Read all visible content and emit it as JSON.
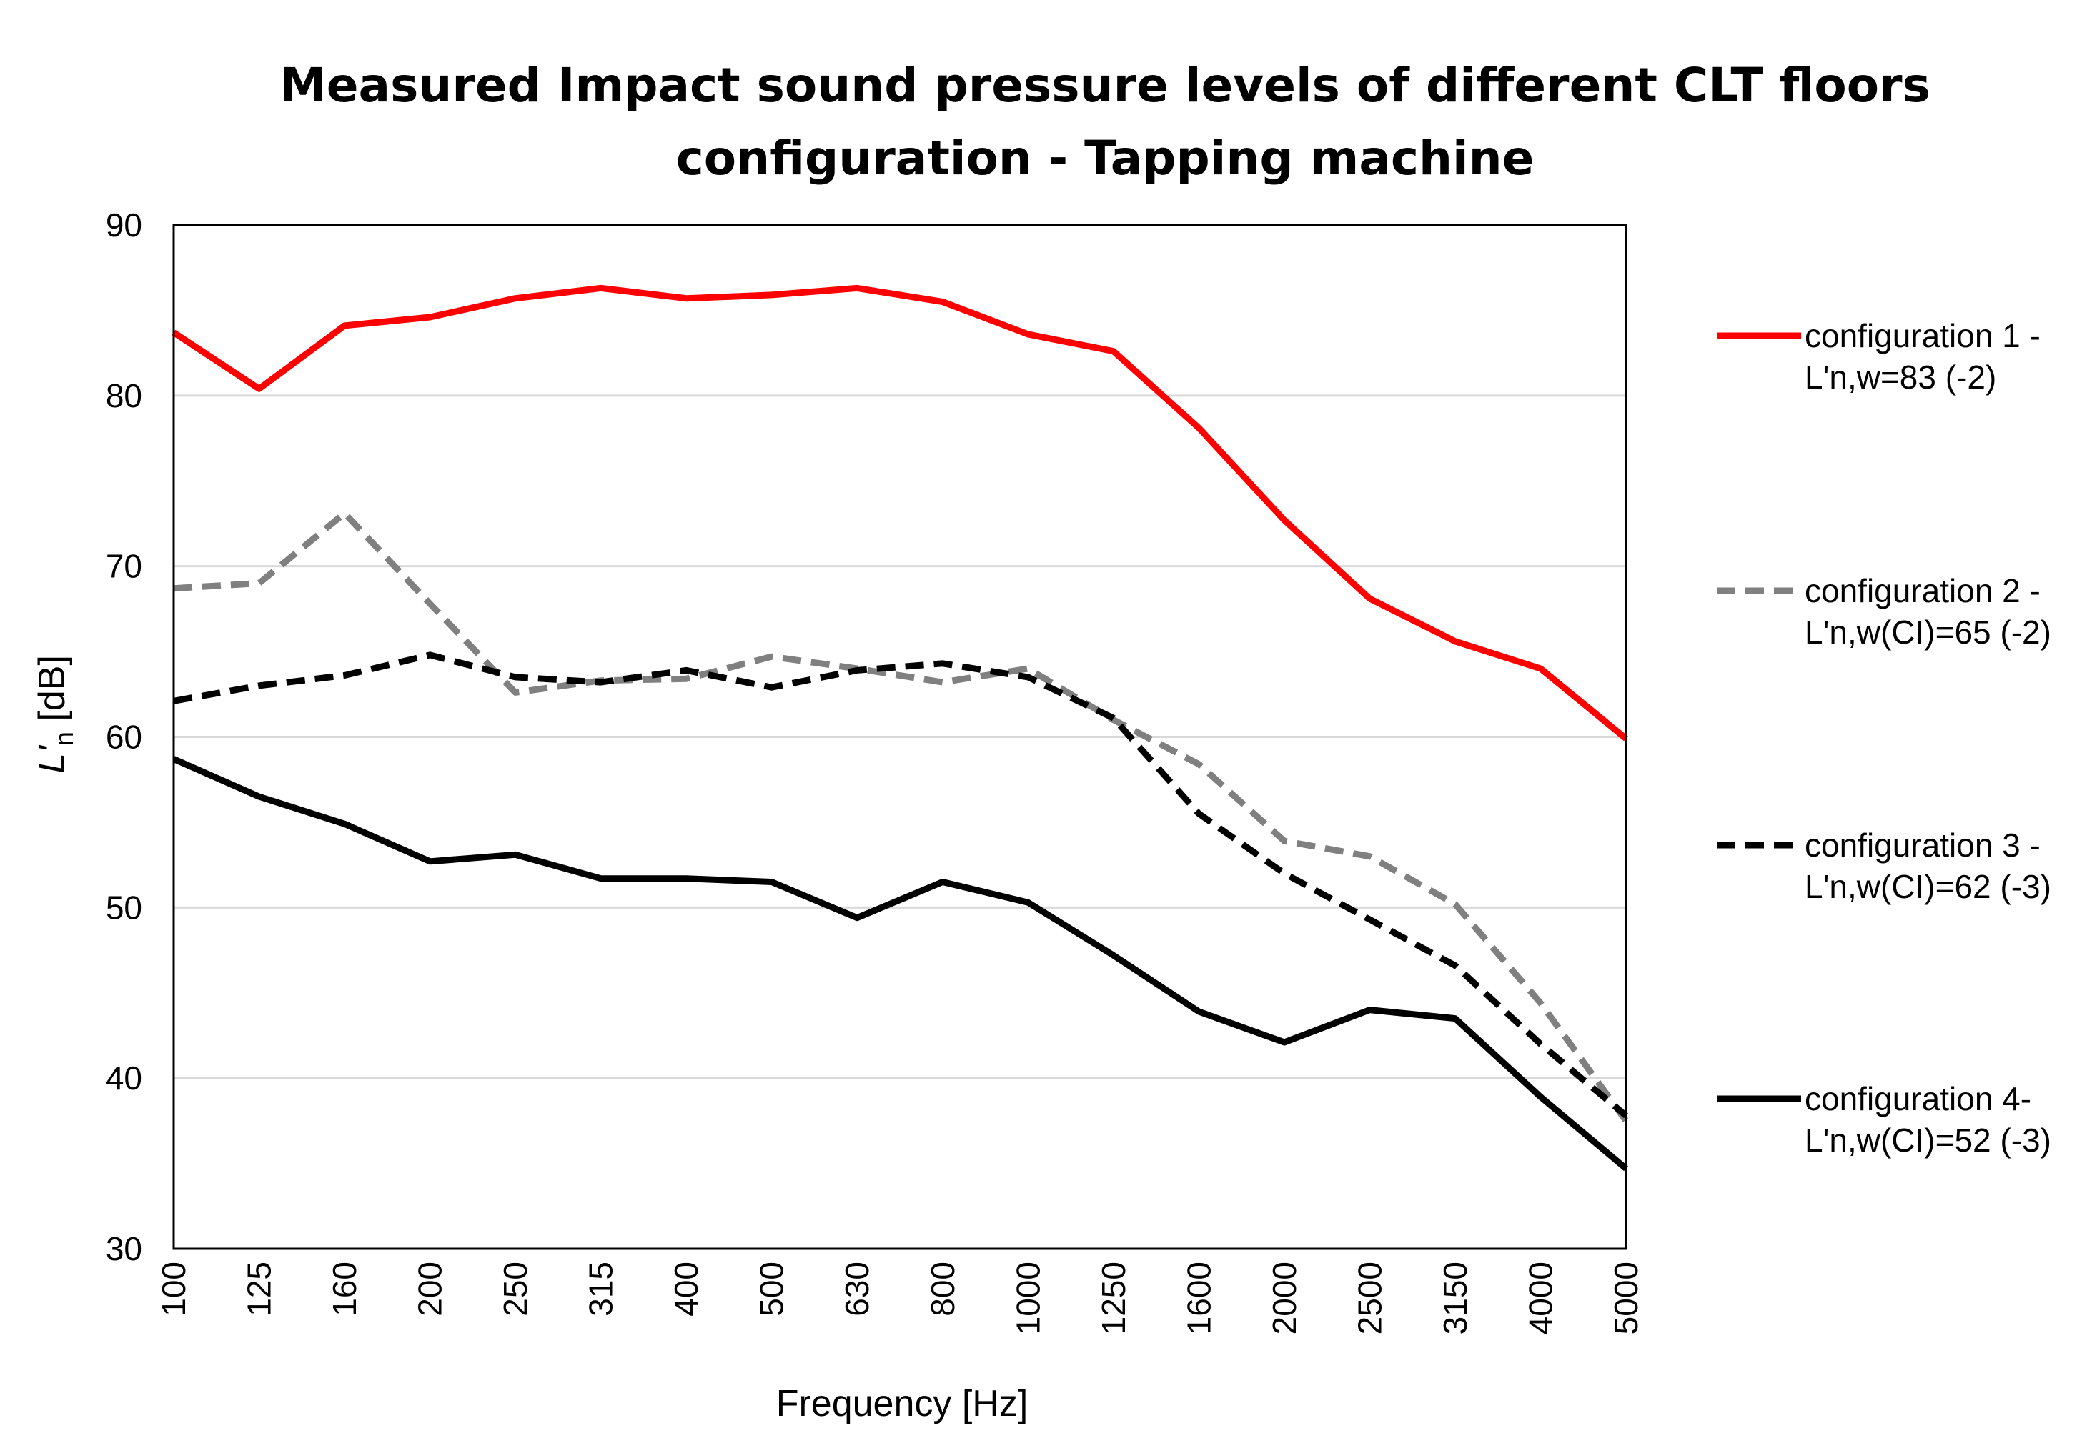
{
  "chart_data": {
    "type": "line",
    "title_lines": [
      "Measured Impact sound pressure levels of different CLT floors",
      "configuration - Tapping machine"
    ],
    "xlabel": "Frequency [Hz]",
    "ylabel": "L'n [dB]",
    "ylabel_parts": {
      "main": "L'",
      "sub": "n",
      "unit": " [dB]"
    },
    "ylim": [
      30,
      90
    ],
    "yticks": [
      30,
      40,
      50,
      60,
      70,
      80,
      90
    ],
    "grid": "horizontal",
    "legend_position": "right",
    "categories": [
      "100",
      "125",
      "160",
      "200",
      "250",
      "315",
      "400",
      "500",
      "630",
      "800",
      "1000",
      "1250",
      "1600",
      "2000",
      "2500",
      "3150",
      "4000",
      "5000"
    ],
    "series": [
      {
        "name": "configuration 1 - L'n,w=83 (-2)",
        "legend_lines": [
          "configuration 1 -",
          "L'n,w=83 (-2)"
        ],
        "color": "#ff0000",
        "style": "solid",
        "values": [
          83.7,
          80.4,
          84.1,
          84.6,
          85.7,
          86.3,
          85.7,
          85.9,
          86.3,
          85.5,
          83.6,
          82.6,
          78.1,
          72.7,
          68.1,
          65.6,
          64.0,
          59.9
        ]
      },
      {
        "name": "configuration 2 - L'n,w(CI)=65 (-2)",
        "legend_lines": [
          "configuration 2 -",
          "L'n,w(CI)=65 (-2)"
        ],
        "color": "#808080",
        "style": "dashed",
        "values": [
          68.7,
          69.0,
          73.1,
          67.8,
          62.6,
          63.3,
          63.4,
          64.7,
          64.0,
          63.2,
          64.0,
          61.0,
          58.4,
          53.9,
          53.0,
          50.2,
          44.4,
          37.5
        ]
      },
      {
        "name": "configuration 3 - L'n,w(CI)=62 (-3)",
        "legend_lines": [
          "configuration 3 -",
          "L'n,w(CI)=62 (-3)"
        ],
        "color": "#000000",
        "style": "dashed",
        "values": [
          62.1,
          63.0,
          63.6,
          64.8,
          63.5,
          63.2,
          63.9,
          62.9,
          63.9,
          64.3,
          63.5,
          61.1,
          55.5,
          52.0,
          49.3,
          46.6,
          42.0,
          37.8
        ]
      },
      {
        "name": "configuration 4- L'n,w(CI)=52 (-3)",
        "legend_lines": [
          "configuration 4-",
          "L'n,w(CI)=52 (-3)"
        ],
        "color": "#000000",
        "style": "solid",
        "values": [
          58.7,
          56.5,
          54.9,
          52.7,
          53.1,
          51.7,
          51.7,
          51.5,
          49.4,
          51.5,
          50.3,
          47.2,
          43.9,
          42.1,
          44.0,
          43.5,
          38.9,
          34.7
        ]
      }
    ]
  }
}
